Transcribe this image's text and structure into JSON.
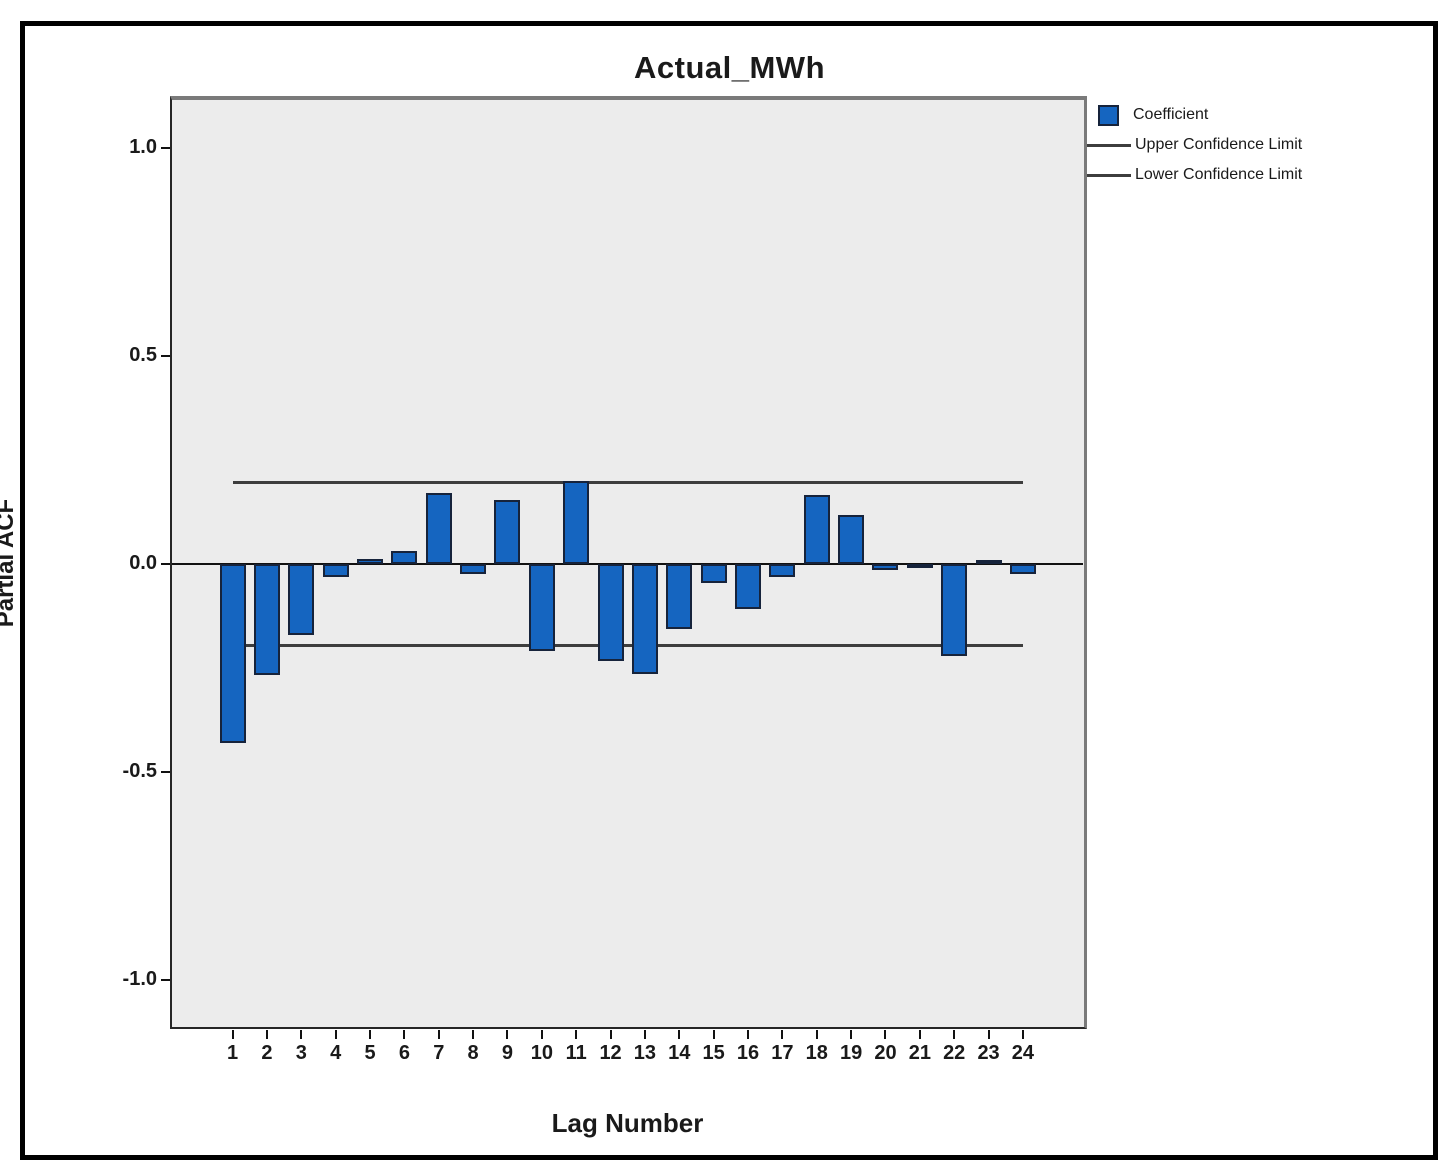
{
  "chart_data": {
    "type": "bar",
    "title": "Actual_MWh",
    "xlabel": "Lag Number",
    "ylabel": "Partial ACF",
    "categories": [
      1,
      2,
      3,
      4,
      5,
      6,
      7,
      8,
      9,
      10,
      11,
      12,
      13,
      14,
      15,
      16,
      17,
      18,
      19,
      20,
      21,
      22,
      23,
      24
    ],
    "values": [
      -0.431,
      -0.266,
      -0.17,
      -0.032,
      0.012,
      0.032,
      0.17,
      -0.024,
      0.153,
      -0.208,
      0.2,
      -0.233,
      -0.265,
      -0.155,
      -0.045,
      -0.107,
      -0.031,
      0.166,
      0.118,
      -0.014,
      -0.004,
      -0.22,
      0.01,
      -0.024
    ],
    "upper_confidence_limit": 0.195,
    "lower_confidence_limit": -0.195,
    "ylim": [
      -1.115,
      1.115
    ],
    "yticks": [
      1.0,
      0.5,
      0.0,
      -0.5,
      -1.0
    ],
    "ytick_labels": [
      "1.0",
      "0.5",
      "0.0",
      "-0.5",
      "-1.0"
    ],
    "grid": false,
    "legend_position": "top-right",
    "legend": [
      {
        "label": "Coefficient",
        "swatch": "square"
      },
      {
        "label": "Upper Confidence Limit",
        "swatch": "line"
      },
      {
        "label": "Lower Confidence Limit",
        "swatch": "line"
      }
    ],
    "colors": {
      "bar_fill": "#1565C0",
      "bar_border": "#16233B",
      "confidence_line": "#3d3d3d",
      "zero_line": "#111111",
      "plot_background": "#ECECEC"
    }
  }
}
